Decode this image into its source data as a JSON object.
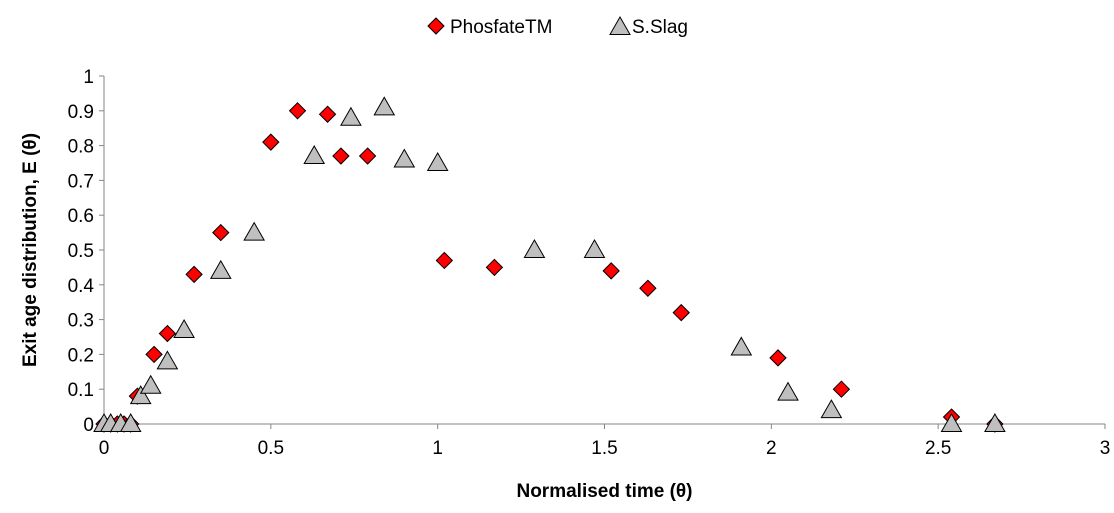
{
  "chart_data": {
    "type": "scatter",
    "title": "",
    "xlabel": "Normalised time (θ)",
    "ylabel": "Exit age distribution, E (θ)",
    "xlim": [
      0,
      3
    ],
    "ylim": [
      0,
      1
    ],
    "xticks": [
      "0",
      "0.5",
      "1",
      "1.5",
      "2",
      "2.5",
      "3"
    ],
    "yticks": [
      "0",
      "0.1",
      "0.2",
      "0.3",
      "0.4",
      "0.5",
      "0.6",
      "0.7",
      "0.8",
      "0.9",
      "1"
    ],
    "grid": false,
    "legend_position": "top-center",
    "series": [
      {
        "name": "PhosfateTM",
        "marker": "diamond",
        "color": "#ff0000",
        "x": [
          0,
          0.02,
          0.04,
          0.06,
          0.08,
          0.1,
          0.15,
          0.19,
          0.27,
          0.35,
          0.5,
          0.58,
          0.67,
          0.71,
          0.79,
          1.02,
          1.17,
          1.52,
          1.63,
          1.73,
          2.02,
          2.21,
          2.54,
          2.67
        ],
        "y": [
          0,
          0,
          0,
          0,
          0,
          0.08,
          0.2,
          0.26,
          0.43,
          0.55,
          0.81,
          0.9,
          0.89,
          0.77,
          0.77,
          0.47,
          0.45,
          0.44,
          0.39,
          0.32,
          0.19,
          0.1,
          0.02,
          0
        ]
      },
      {
        "name": "S.Slag",
        "marker": "triangle",
        "color": "#bfbfbf",
        "x": [
          0,
          0.02,
          0.05,
          0.08,
          0.11,
          0.14,
          0.19,
          0.24,
          0.35,
          0.45,
          0.63,
          0.74,
          0.84,
          0.9,
          1.0,
          1.29,
          1.47,
          1.91,
          2.05,
          2.18,
          2.54,
          2.67
        ],
        "y": [
          0,
          0,
          0,
          0,
          0.08,
          0.11,
          0.18,
          0.27,
          0.44,
          0.55,
          0.77,
          0.88,
          0.91,
          0.76,
          0.75,
          0.5,
          0.5,
          0.22,
          0.09,
          0.04,
          0,
          0
        ]
      }
    ]
  }
}
